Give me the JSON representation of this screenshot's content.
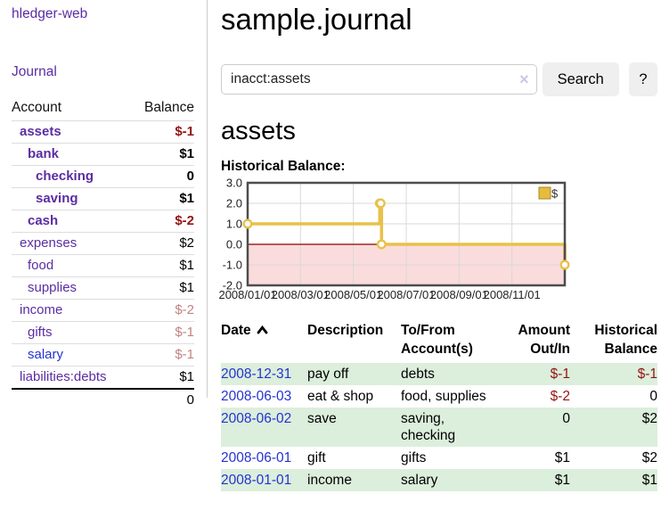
{
  "colors": {
    "link_purple": "#5b2da2",
    "link_blue": "#2433d0",
    "negative": "#941414",
    "negative_muted": "#c28383",
    "row_highlight_green": "#dceedc",
    "chart_line_gold": "#e8c14a",
    "chart_negative_area_pink": "#fadcdc",
    "chart_zero_line_red": "#8b0000",
    "chart_border_gray": "#4d4d4d",
    "button_gray": "#efefef"
  },
  "sidebar": {
    "app_title": "hledger-web",
    "journal_label": "Journal",
    "accounts_table": {
      "headers": {
        "account": "Account",
        "balance": "Balance"
      },
      "rows": [
        {
          "name": "assets",
          "level": 1,
          "bold": true,
          "name_color": "purple",
          "balance": "$-1",
          "balance_style": "neg"
        },
        {
          "name": "bank",
          "level": 2,
          "bold": true,
          "name_color": "purple",
          "balance": "$1",
          "balance_style": "pos"
        },
        {
          "name": "checking",
          "level": 3,
          "bold": true,
          "name_color": "purple",
          "balance": "0",
          "balance_style": "pos"
        },
        {
          "name": "saving",
          "level": 3,
          "bold": true,
          "name_color": "purple",
          "balance": "$1",
          "balance_style": "pos"
        },
        {
          "name": "cash",
          "level": 2,
          "bold": true,
          "name_color": "purple",
          "balance": "$-2",
          "balance_style": "neg"
        },
        {
          "name": "expenses",
          "level": 1,
          "bold": false,
          "name_color": "purple",
          "balance": "$2",
          "balance_style": "pos"
        },
        {
          "name": "food",
          "level": 2,
          "bold": false,
          "name_color": "purple",
          "balance": "$1",
          "balance_style": "pos"
        },
        {
          "name": "supplies",
          "level": 2,
          "bold": false,
          "name_color": "purple",
          "balance": "$1",
          "balance_style": "pos"
        },
        {
          "name": "income",
          "level": 1,
          "bold": false,
          "name_color": "purple",
          "balance": "$-2",
          "balance_style": "neg-muted"
        },
        {
          "name": "gifts",
          "level": 2,
          "bold": false,
          "name_color": "purple",
          "balance": "$-1",
          "balance_style": "neg-muted"
        },
        {
          "name": "salary",
          "level": 2,
          "bold": false,
          "name_color": "blue",
          "balance": "$-1",
          "balance_style": "neg-muted"
        },
        {
          "name": "liabilities:debts",
          "level": 1,
          "bold": false,
          "name_color": "purple",
          "balance": "$1",
          "balance_style": "pos"
        }
      ],
      "total": "0"
    }
  },
  "main": {
    "title": "sample.journal",
    "search": {
      "value": "inacct:assets",
      "clear_icon": "×",
      "button_label": "Search",
      "help_label": "?"
    },
    "account_heading": "assets",
    "transactions": {
      "headers": {
        "date": "Date",
        "description": "Description",
        "accounts": "To/From Account(s)",
        "amount": "Amount Out/In",
        "balance": "Historical Balance"
      },
      "sort": {
        "column": "date",
        "direction": "ascending"
      },
      "rows": [
        {
          "date": "2008-12-31",
          "description": "pay off",
          "accounts": "debts",
          "amount": "$-1",
          "amount_style": "neg",
          "balance": "$-1",
          "balance_style": "neg",
          "highlighted": true
        },
        {
          "date": "2008-06-03",
          "description": "eat & shop",
          "accounts": "food, supplies",
          "amount": "$-2",
          "amount_style": "neg",
          "balance": "0",
          "balance_style": "pos",
          "highlighted": false
        },
        {
          "date": "2008-06-02",
          "description": "save",
          "accounts": "saving, checking",
          "amount": "0",
          "amount_style": "pos",
          "balance": "$2",
          "balance_style": "pos",
          "highlighted": true
        },
        {
          "date": "2008-06-01",
          "description": "gift",
          "accounts": "gifts",
          "amount": "$1",
          "amount_style": "pos",
          "balance": "$2",
          "balance_style": "pos",
          "highlighted": false
        },
        {
          "date": "2008-01-01",
          "description": "income",
          "accounts": "salary",
          "amount": "$1",
          "amount_style": "pos",
          "balance": "$1",
          "balance_style": "pos",
          "highlighted": true
        }
      ]
    }
  },
  "chart_data": {
    "type": "line",
    "step": true,
    "title": "Historical Balance:",
    "series": [
      {
        "name": "$",
        "color": "#e8c14a",
        "points": [
          {
            "x": "2008-01-01",
            "y": 1
          },
          {
            "x": "2008-06-01",
            "y": 2
          },
          {
            "x": "2008-06-02",
            "y": 2
          },
          {
            "x": "2008-06-03",
            "y": 0
          },
          {
            "x": "2008-12-31",
            "y": -1
          }
        ]
      }
    ],
    "ylim": [
      -2,
      3
    ],
    "yticks": [
      "3.0",
      "2.0",
      "1.0",
      "0.0",
      "-1.0",
      "-2.0"
    ],
    "ytick_values": [
      3,
      2,
      1,
      0,
      -1,
      -2
    ],
    "xticks": [
      "2008/01/01",
      "2008/03/01",
      "2008/05/01",
      "2008/07/01",
      "2008/09/01",
      "2008/11/01"
    ],
    "xtick_month_index": [
      0,
      2,
      4,
      6,
      8,
      10
    ],
    "x_months_range": [
      0,
      12
    ],
    "grid": true,
    "negative_area_fill": "#fadcdc",
    "zero_line_color": "#8b0000",
    "legend": {
      "label": "$",
      "position": "top-right"
    }
  }
}
